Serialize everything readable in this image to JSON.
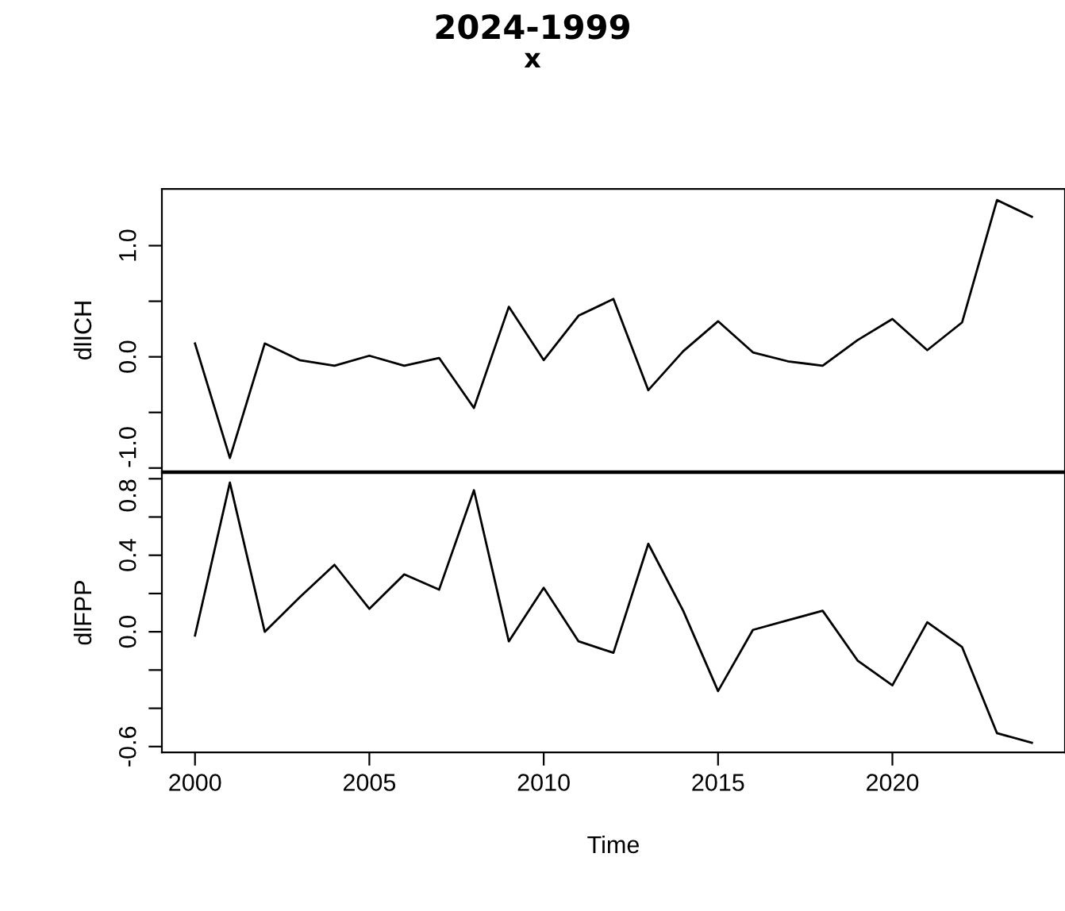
{
  "chart_data": [
    {
      "type": "line",
      "title": "2024-1999",
      "subtitle": "x",
      "ylabel": "dlICH",
      "tick_labels": "y",
      "x": [
        2000,
        2001,
        2002,
        2003,
        2004,
        2005,
        2006,
        2007,
        2008,
        2009,
        2010,
        2011,
        2012,
        2013,
        2014,
        2015,
        2016,
        2017,
        2018,
        2019,
        2020,
        2021,
        2022,
        2023,
        2024
      ],
      "series": [
        {
          "color": "#000000",
          "values": [
            0.12,
            -0.91,
            0.12,
            -0.03,
            -0.08,
            0.01,
            -0.08,
            -0.01,
            -0.46,
            0.45,
            -0.03,
            0.37,
            0.52,
            -0.3,
            0.05,
            0.32,
            0.04,
            -0.04,
            -0.08,
            0.15,
            0.34,
            0.06,
            0.31,
            1.41,
            1.26
          ]
        }
      ],
      "xlim": [
        1999.05,
        2024.95
      ],
      "ylim": [
        -1.03,
        1.51
      ],
      "yticks": [
        {
          "value": -1.0,
          "label": "-1.0"
        },
        {
          "value": -0.5,
          "label": null
        },
        {
          "value": 0.0,
          "label": "0.0"
        },
        {
          "value": 0.5,
          "label": null
        },
        {
          "value": 1.0,
          "label": "1.0"
        }
      ]
    },
    {
      "type": "line",
      "xlabel": "Time",
      "ylabel": "dlFPP",
      "x": [
        2000,
        2001,
        2002,
        2003,
        2004,
        2005,
        2006,
        2007,
        2008,
        2009,
        2010,
        2011,
        2012,
        2013,
        2014,
        2015,
        2016,
        2017,
        2018,
        2019,
        2020,
        2021,
        2022,
        2023,
        2024
      ],
      "series": [
        {
          "color": "#000000",
          "values": [
            -0.02,
            0.78,
            0.0,
            0.18,
            0.35,
            0.12,
            0.3,
            0.22,
            0.74,
            -0.05,
            0.23,
            -0.05,
            -0.11,
            0.46,
            0.11,
            -0.31,
            0.01,
            0.06,
            0.11,
            -0.15,
            -0.28,
            0.05,
            -0.08,
            -0.53,
            -0.58
          ]
        }
      ],
      "xlim": [
        1999.05,
        2024.95
      ],
      "ylim": [
        -0.63,
        0.83
      ],
      "xticks": [
        2000,
        2005,
        2010,
        2015,
        2020
      ],
      "yticks": [
        {
          "value": -0.6,
          "label": "-0.6"
        },
        {
          "value": -0.4,
          "label": null
        },
        {
          "value": -0.2,
          "label": null
        },
        {
          "value": 0.0,
          "label": "0.0"
        },
        {
          "value": 0.2,
          "label": null
        },
        {
          "value": 0.4,
          "label": "0.4"
        },
        {
          "value": 0.6,
          "label": null
        },
        {
          "value": 0.8,
          "label": "0.8"
        }
      ]
    }
  ]
}
